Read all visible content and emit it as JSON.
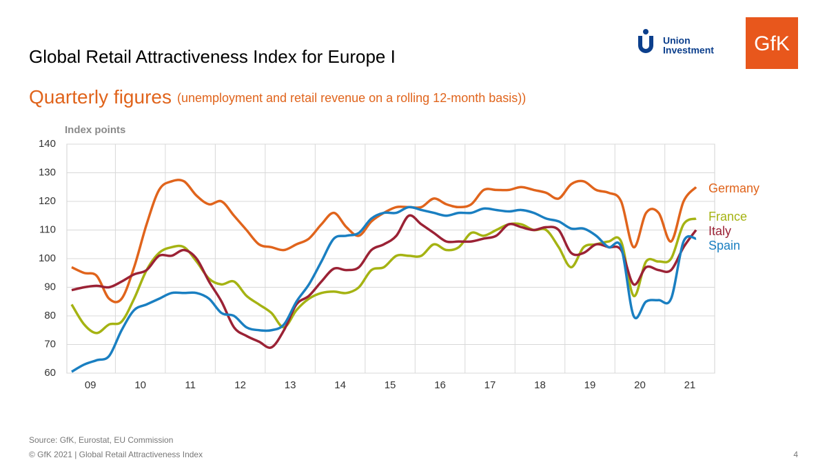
{
  "chart_data": {
    "type": "line",
    "title": "Global Retail Attractiveness Index for Europe I",
    "subtitle": "Quarterly figures",
    "subtitle_note": "(unemployment and retail revenue on a rolling 12-month basis))",
    "y_label": "Index points",
    "source": "Source: GfK, Eurostat, EU Commission",
    "footer": "© GfK 2021 | Global Retail Attractiveness Index",
    "page_number": "4",
    "logos": [
      "Union",
      "Investment",
      "GfK"
    ],
    "categories": [
      null,
      "09",
      null,
      null,
      null,
      "10",
      null,
      null,
      null,
      "11",
      null,
      null,
      null,
      "12",
      null,
      null,
      null,
      "13",
      null,
      null,
      null,
      "14",
      null,
      null,
      null,
      "15",
      null,
      null,
      null,
      "16",
      null,
      null,
      null,
      "17",
      null,
      null,
      null,
      "18",
      null,
      null,
      null,
      "19",
      null,
      null,
      null,
      "20",
      null,
      null,
      null,
      "21",
      null
    ],
    "ylim": [
      60,
      140
    ],
    "yticks": [
      60,
      70,
      80,
      90,
      100,
      110,
      120,
      130,
      140
    ],
    "grid": true,
    "series": [
      {
        "name": "Germany",
        "color": "#e0641c",
        "values": [
          97,
          95,
          94,
          86,
          86,
          97,
          112,
          124,
          127,
          127,
          122,
          119,
          120,
          115,
          110,
          105,
          104,
          103,
          105,
          107,
          112,
          116,
          111,
          108,
          113,
          116,
          118,
          118,
          118,
          121,
          119,
          118,
          119,
          124,
          124,
          124,
          125,
          124,
          123,
          121,
          126,
          127,
          124,
          123,
          120,
          104,
          116,
          116,
          106,
          120,
          125
        ]
      },
      {
        "name": "France",
        "color": "#a5b313",
        "values": [
          84,
          77,
          74,
          77,
          78,
          86,
          96,
          102,
          104,
          104,
          99,
          93,
          91,
          92,
          87,
          84,
          81,
          76,
          82,
          86,
          88,
          88.5,
          88,
          90,
          96,
          97,
          101,
          101,
          101,
          105,
          103,
          104,
          109,
          108,
          110,
          112,
          112,
          110,
          110,
          104,
          97,
          104,
          105,
          106,
          106,
          87,
          99,
          99,
          100,
          112,
          114
        ]
      },
      {
        "name": "Italy",
        "color": "#9b2235",
        "values": [
          89,
          90,
          90.5,
          90,
          92,
          94.5,
          96,
          101,
          101,
          103,
          100,
          92,
          85,
          76,
          73,
          71,
          69,
          75,
          84,
          87,
          92,
          96.5,
          96,
          97,
          103,
          105,
          108,
          115,
          112,
          109,
          106,
          106,
          106,
          107,
          108,
          112,
          111,
          110,
          111,
          110,
          102,
          102,
          105,
          104,
          103,
          91,
          97,
          96,
          96,
          104,
          110
        ]
      },
      {
        "name": "Spain",
        "color": "#1a7fc1",
        "values": [
          60.5,
          63,
          64.5,
          66,
          75,
          82,
          84,
          86,
          88,
          88,
          88,
          86,
          81,
          80,
          76,
          75,
          75,
          77,
          85,
          91,
          99,
          107,
          108,
          109,
          114,
          116,
          116,
          118,
          117,
          116,
          115,
          116,
          116,
          117.5,
          117,
          116.5,
          117,
          116,
          114,
          113,
          110.5,
          110.5,
          108,
          104,
          104,
          80,
          85,
          85.5,
          86,
          106,
          107
        ]
      }
    ]
  }
}
